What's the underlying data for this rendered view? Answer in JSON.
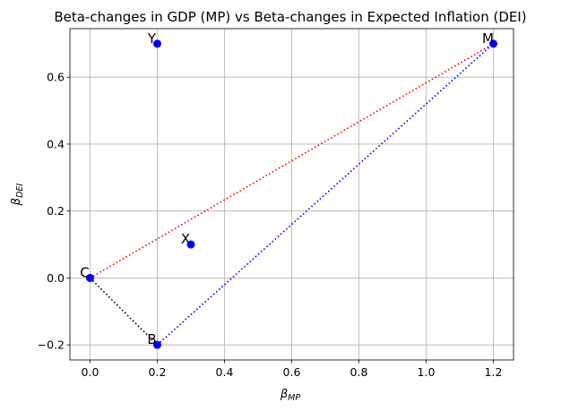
{
  "chart_data": {
    "type": "scatter",
    "title": "Beta-changes in GDP (MP) vs Beta-changes in Expected Inflation (DEI)",
    "xlabel_symbol": "β",
    "xlabel_sub": "MP",
    "ylabel_symbol": "β",
    "ylabel_sub": "DEI",
    "xlim": [
      -0.06,
      1.26
    ],
    "ylim": [
      -0.245,
      0.745
    ],
    "xticks": [
      0.0,
      0.2,
      0.4,
      0.6,
      0.8,
      1.0,
      1.2
    ],
    "xtick_labels": [
      "0.0",
      "0.2",
      "0.4",
      "0.6",
      "0.8",
      "1.0",
      "1.2"
    ],
    "yticks": [
      -0.2,
      0.0,
      0.2,
      0.4,
      0.6
    ],
    "ytick_labels": [
      "−0.2",
      "0.0",
      "0.2",
      "0.4",
      "0.6"
    ],
    "grid": true,
    "points": [
      {
        "label": "C",
        "x": 0.0,
        "y": 0.0
      },
      {
        "label": "B",
        "x": 0.2,
        "y": -0.2
      },
      {
        "label": "X",
        "x": 0.3,
        "y": 0.1
      },
      {
        "label": "Y",
        "x": 0.2,
        "y": 0.7
      },
      {
        "label": "M",
        "x": 1.2,
        "y": 0.7
      }
    ],
    "lines": [
      {
        "from": "C",
        "to": "M",
        "color": "#ff0000",
        "style": "dotted"
      },
      {
        "from": "B",
        "to": "M",
        "color": "#0000ff",
        "style": "dotted"
      },
      {
        "from": "C",
        "to": "B",
        "color": "#000000",
        "style": "dotted"
      }
    ],
    "point_color": "#0000ff"
  }
}
